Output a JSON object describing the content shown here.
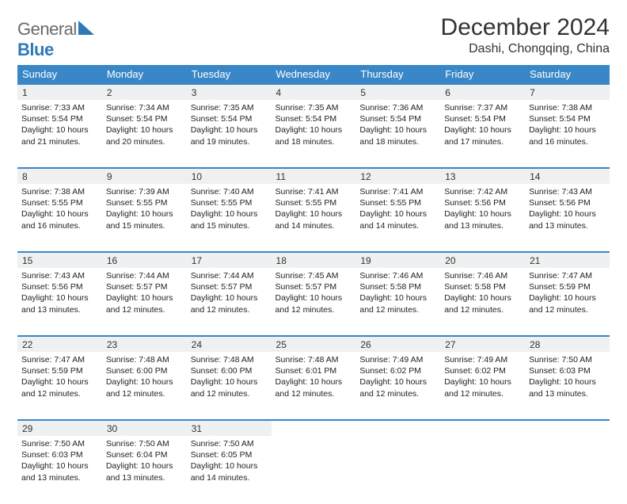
{
  "brand": {
    "part1": "General",
    "part2": "Blue"
  },
  "title": "December 2024",
  "location": "Dashi, Chongqing, China",
  "colors": {
    "header_bg": "#3a87c7",
    "header_text": "#ffffff",
    "daynum_bg": "#eef0f1",
    "row_border": "#3a87c7",
    "text": "#222222",
    "logo_gray": "#6a6a6a",
    "logo_blue": "#2e79b8"
  },
  "weekdays": [
    "Sunday",
    "Monday",
    "Tuesday",
    "Wednesday",
    "Thursday",
    "Friday",
    "Saturday"
  ],
  "weeks": [
    [
      {
        "n": "1",
        "sr": "Sunrise: 7:33 AM",
        "ss": "Sunset: 5:54 PM",
        "d1": "Daylight: 10 hours",
        "d2": "and 21 minutes."
      },
      {
        "n": "2",
        "sr": "Sunrise: 7:34 AM",
        "ss": "Sunset: 5:54 PM",
        "d1": "Daylight: 10 hours",
        "d2": "and 20 minutes."
      },
      {
        "n": "3",
        "sr": "Sunrise: 7:35 AM",
        "ss": "Sunset: 5:54 PM",
        "d1": "Daylight: 10 hours",
        "d2": "and 19 minutes."
      },
      {
        "n": "4",
        "sr": "Sunrise: 7:35 AM",
        "ss": "Sunset: 5:54 PM",
        "d1": "Daylight: 10 hours",
        "d2": "and 18 minutes."
      },
      {
        "n": "5",
        "sr": "Sunrise: 7:36 AM",
        "ss": "Sunset: 5:54 PM",
        "d1": "Daylight: 10 hours",
        "d2": "and 18 minutes."
      },
      {
        "n": "6",
        "sr": "Sunrise: 7:37 AM",
        "ss": "Sunset: 5:54 PM",
        "d1": "Daylight: 10 hours",
        "d2": "and 17 minutes."
      },
      {
        "n": "7",
        "sr": "Sunrise: 7:38 AM",
        "ss": "Sunset: 5:54 PM",
        "d1": "Daylight: 10 hours",
        "d2": "and 16 minutes."
      }
    ],
    [
      {
        "n": "8",
        "sr": "Sunrise: 7:38 AM",
        "ss": "Sunset: 5:55 PM",
        "d1": "Daylight: 10 hours",
        "d2": "and 16 minutes."
      },
      {
        "n": "9",
        "sr": "Sunrise: 7:39 AM",
        "ss": "Sunset: 5:55 PM",
        "d1": "Daylight: 10 hours",
        "d2": "and 15 minutes."
      },
      {
        "n": "10",
        "sr": "Sunrise: 7:40 AM",
        "ss": "Sunset: 5:55 PM",
        "d1": "Daylight: 10 hours",
        "d2": "and 15 minutes."
      },
      {
        "n": "11",
        "sr": "Sunrise: 7:41 AM",
        "ss": "Sunset: 5:55 PM",
        "d1": "Daylight: 10 hours",
        "d2": "and 14 minutes."
      },
      {
        "n": "12",
        "sr": "Sunrise: 7:41 AM",
        "ss": "Sunset: 5:55 PM",
        "d1": "Daylight: 10 hours",
        "d2": "and 14 minutes."
      },
      {
        "n": "13",
        "sr": "Sunrise: 7:42 AM",
        "ss": "Sunset: 5:56 PM",
        "d1": "Daylight: 10 hours",
        "d2": "and 13 minutes."
      },
      {
        "n": "14",
        "sr": "Sunrise: 7:43 AM",
        "ss": "Sunset: 5:56 PM",
        "d1": "Daylight: 10 hours",
        "d2": "and 13 minutes."
      }
    ],
    [
      {
        "n": "15",
        "sr": "Sunrise: 7:43 AM",
        "ss": "Sunset: 5:56 PM",
        "d1": "Daylight: 10 hours",
        "d2": "and 13 minutes."
      },
      {
        "n": "16",
        "sr": "Sunrise: 7:44 AM",
        "ss": "Sunset: 5:57 PM",
        "d1": "Daylight: 10 hours",
        "d2": "and 12 minutes."
      },
      {
        "n": "17",
        "sr": "Sunrise: 7:44 AM",
        "ss": "Sunset: 5:57 PM",
        "d1": "Daylight: 10 hours",
        "d2": "and 12 minutes."
      },
      {
        "n": "18",
        "sr": "Sunrise: 7:45 AM",
        "ss": "Sunset: 5:57 PM",
        "d1": "Daylight: 10 hours",
        "d2": "and 12 minutes."
      },
      {
        "n": "19",
        "sr": "Sunrise: 7:46 AM",
        "ss": "Sunset: 5:58 PM",
        "d1": "Daylight: 10 hours",
        "d2": "and 12 minutes."
      },
      {
        "n": "20",
        "sr": "Sunrise: 7:46 AM",
        "ss": "Sunset: 5:58 PM",
        "d1": "Daylight: 10 hours",
        "d2": "and 12 minutes."
      },
      {
        "n": "21",
        "sr": "Sunrise: 7:47 AM",
        "ss": "Sunset: 5:59 PM",
        "d1": "Daylight: 10 hours",
        "d2": "and 12 minutes."
      }
    ],
    [
      {
        "n": "22",
        "sr": "Sunrise: 7:47 AM",
        "ss": "Sunset: 5:59 PM",
        "d1": "Daylight: 10 hours",
        "d2": "and 12 minutes."
      },
      {
        "n": "23",
        "sr": "Sunrise: 7:48 AM",
        "ss": "Sunset: 6:00 PM",
        "d1": "Daylight: 10 hours",
        "d2": "and 12 minutes."
      },
      {
        "n": "24",
        "sr": "Sunrise: 7:48 AM",
        "ss": "Sunset: 6:00 PM",
        "d1": "Daylight: 10 hours",
        "d2": "and 12 minutes."
      },
      {
        "n": "25",
        "sr": "Sunrise: 7:48 AM",
        "ss": "Sunset: 6:01 PM",
        "d1": "Daylight: 10 hours",
        "d2": "and 12 minutes."
      },
      {
        "n": "26",
        "sr": "Sunrise: 7:49 AM",
        "ss": "Sunset: 6:02 PM",
        "d1": "Daylight: 10 hours",
        "d2": "and 12 minutes."
      },
      {
        "n": "27",
        "sr": "Sunrise: 7:49 AM",
        "ss": "Sunset: 6:02 PM",
        "d1": "Daylight: 10 hours",
        "d2": "and 12 minutes."
      },
      {
        "n": "28",
        "sr": "Sunrise: 7:50 AM",
        "ss": "Sunset: 6:03 PM",
        "d1": "Daylight: 10 hours",
        "d2": "and 13 minutes."
      }
    ],
    [
      {
        "n": "29",
        "sr": "Sunrise: 7:50 AM",
        "ss": "Sunset: 6:03 PM",
        "d1": "Daylight: 10 hours",
        "d2": "and 13 minutes."
      },
      {
        "n": "30",
        "sr": "Sunrise: 7:50 AM",
        "ss": "Sunset: 6:04 PM",
        "d1": "Daylight: 10 hours",
        "d2": "and 13 minutes."
      },
      {
        "n": "31",
        "sr": "Sunrise: 7:50 AM",
        "ss": "Sunset: 6:05 PM",
        "d1": "Daylight: 10 hours",
        "d2": "and 14 minutes."
      },
      null,
      null,
      null,
      null
    ]
  ]
}
